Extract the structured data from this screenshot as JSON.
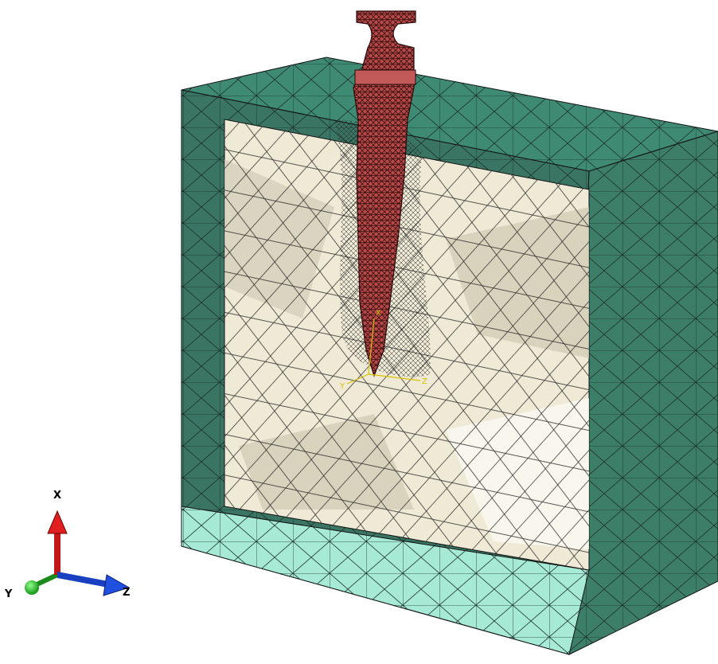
{
  "triad": {
    "x_label": "X",
    "y_label": "Y",
    "z_label": "Z"
  },
  "local_csys": {
    "x_label": "X",
    "y_label": "Y",
    "z_label": "Z"
  }
}
